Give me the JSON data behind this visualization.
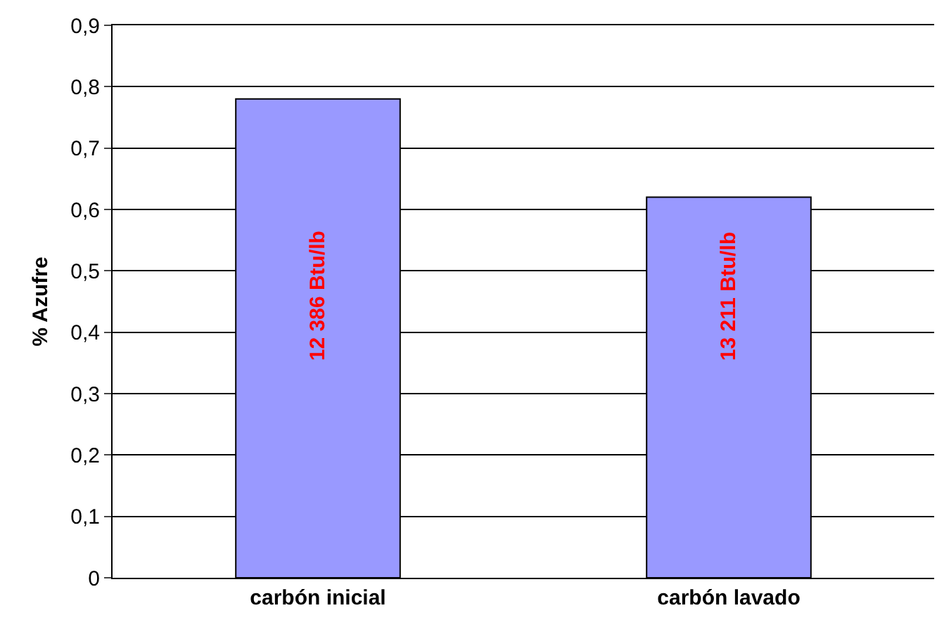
{
  "chart_data": {
    "type": "bar",
    "ylabel": "% Azufre",
    "categories": [
      "carbón inicial",
      "carbón lavado"
    ],
    "values": [
      0.78,
      0.62
    ],
    "color": "#9999ff",
    "ylim": [
      0,
      0.9
    ],
    "yticks": [
      {
        "value": 0,
        "label": "0"
      },
      {
        "value": 0.1,
        "label": "0,1"
      },
      {
        "value": 0.2,
        "label": "0,2"
      },
      {
        "value": 0.3,
        "label": "0,3"
      },
      {
        "value": 0.4,
        "label": "0,4"
      },
      {
        "value": 0.5,
        "label": "0,5"
      },
      {
        "value": 0.6,
        "label": "0,6"
      },
      {
        "value": 0.7,
        "label": "0,7"
      },
      {
        "value": 0.8,
        "label": "0,8"
      },
      {
        "value": 0.9,
        "label": "0,9"
      }
    ],
    "grid": "y",
    "annotations": [
      "12 386 Btu/lb",
      "13 211 Btu/lb"
    ]
  }
}
